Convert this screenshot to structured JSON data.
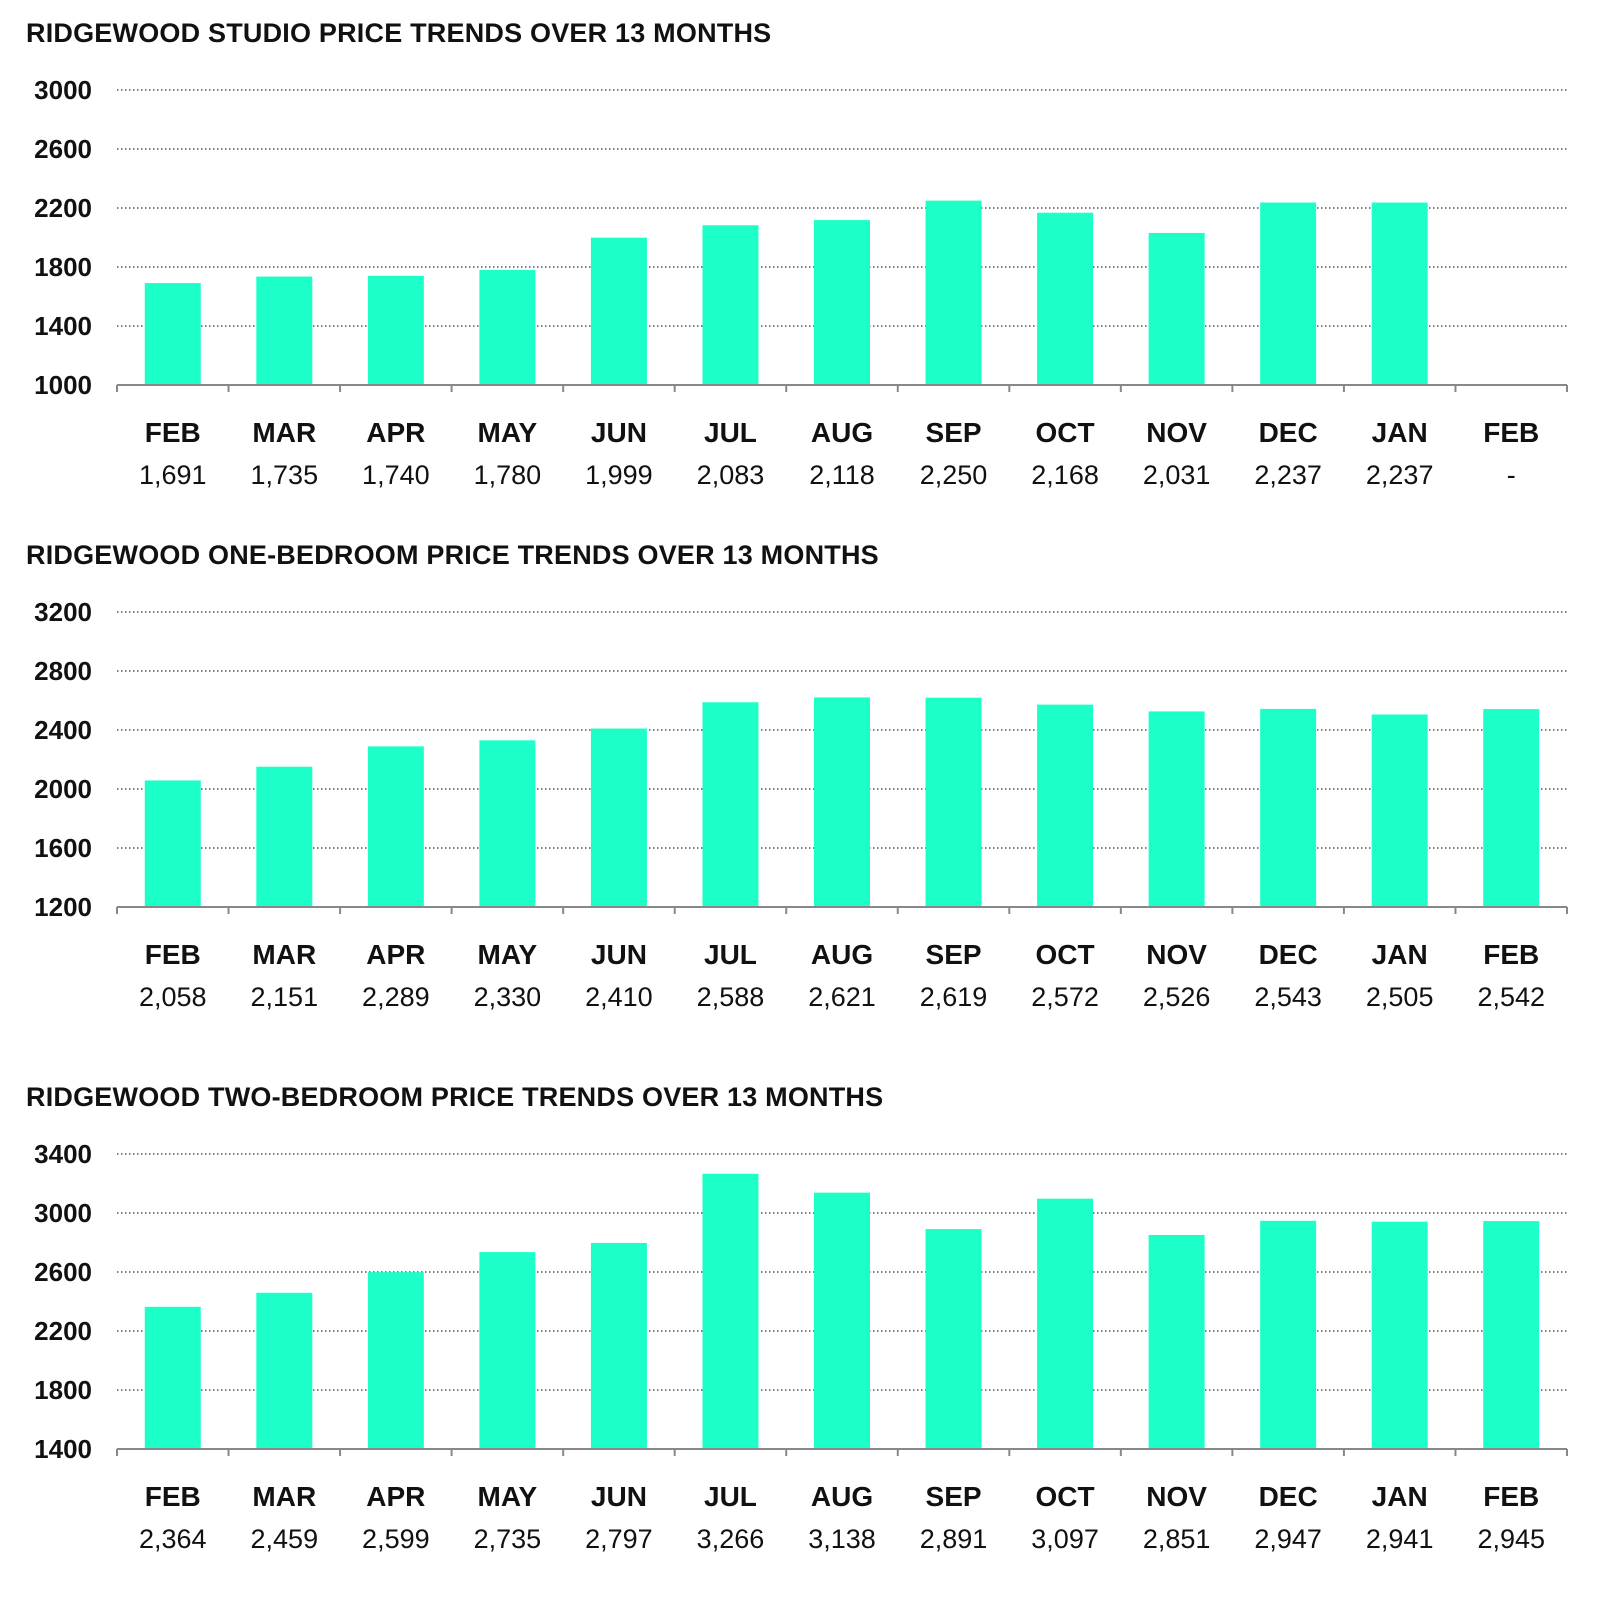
{
  "colors": {
    "bar": "#1DFFC8",
    "grid": "#333333",
    "axis": "#888888",
    "text": "#111111"
  },
  "chart_data": [
    {
      "type": "bar",
      "title": "RIDGEWOOD STUDIO PRICE TRENDS OVER 13 MONTHS",
      "categories": [
        "FEB",
        "MAR",
        "APR",
        "MAY",
        "JUN",
        "JUL",
        "AUG",
        "SEP",
        "OCT",
        "NOV",
        "DEC",
        "JAN",
        "FEB"
      ],
      "values": [
        1691,
        1735,
        1740,
        1780,
        1999,
        2083,
        2118,
        2250,
        2168,
        2031,
        2237,
        2237,
        null
      ],
      "value_labels": [
        "1,691",
        "1,735",
        "1,740",
        "1,780",
        "1,999",
        "2,083",
        "2,118",
        "2,250",
        "2,168",
        "2,031",
        "2,237",
        "2,237",
        "-"
      ],
      "yticks": [
        "1000",
        "1400",
        "1800",
        "2200",
        "2600",
        "3000"
      ],
      "ylim": [
        1000,
        3000
      ],
      "grid": true,
      "xlabel": "",
      "ylabel": ""
    },
    {
      "type": "bar",
      "title": "RIDGEWOOD ONE-BEDROOM PRICE TRENDS OVER 13 MONTHS",
      "categories": [
        "FEB",
        "MAR",
        "APR",
        "MAY",
        "JUN",
        "JUL",
        "AUG",
        "SEP",
        "OCT",
        "NOV",
        "DEC",
        "JAN",
        "FEB"
      ],
      "values": [
        2058,
        2151,
        2289,
        2330,
        2410,
        2588,
        2621,
        2619,
        2572,
        2526,
        2543,
        2505,
        2542
      ],
      "value_labels": [
        "2,058",
        "2,151",
        "2,289",
        "2,330",
        "2,410",
        "2,588",
        "2,621",
        "2,619",
        "2,572",
        "2,526",
        "2,543",
        "2,505",
        "2,542"
      ],
      "yticks": [
        "1200",
        "1600",
        "2000",
        "2400",
        "2800",
        "3200"
      ],
      "ylim": [
        1200,
        3200
      ],
      "grid": true,
      "xlabel": "",
      "ylabel": ""
    },
    {
      "type": "bar",
      "title": "RIDGEWOOD TWO-BEDROOM PRICE TRENDS OVER 13 MONTHS",
      "categories": [
        "FEB",
        "MAR",
        "APR",
        "MAY",
        "JUN",
        "JUL",
        "AUG",
        "SEP",
        "OCT",
        "NOV",
        "DEC",
        "JAN",
        "FEB"
      ],
      "values": [
        2364,
        2459,
        2599,
        2735,
        2797,
        3266,
        3138,
        2891,
        3097,
        2851,
        2947,
        2941,
        2945
      ],
      "value_labels": [
        "2,364",
        "2,459",
        "2,599",
        "2,735",
        "2,797",
        "3,266",
        "3,138",
        "2,891",
        "3,097",
        "2,851",
        "2,947",
        "2,941",
        "2,945"
      ],
      "yticks": [
        "1400",
        "1800",
        "2200",
        "2600",
        "3000",
        "3400"
      ],
      "ylim": [
        1400,
        3400
      ],
      "grid": true,
      "xlabel": "",
      "ylabel": ""
    }
  ]
}
